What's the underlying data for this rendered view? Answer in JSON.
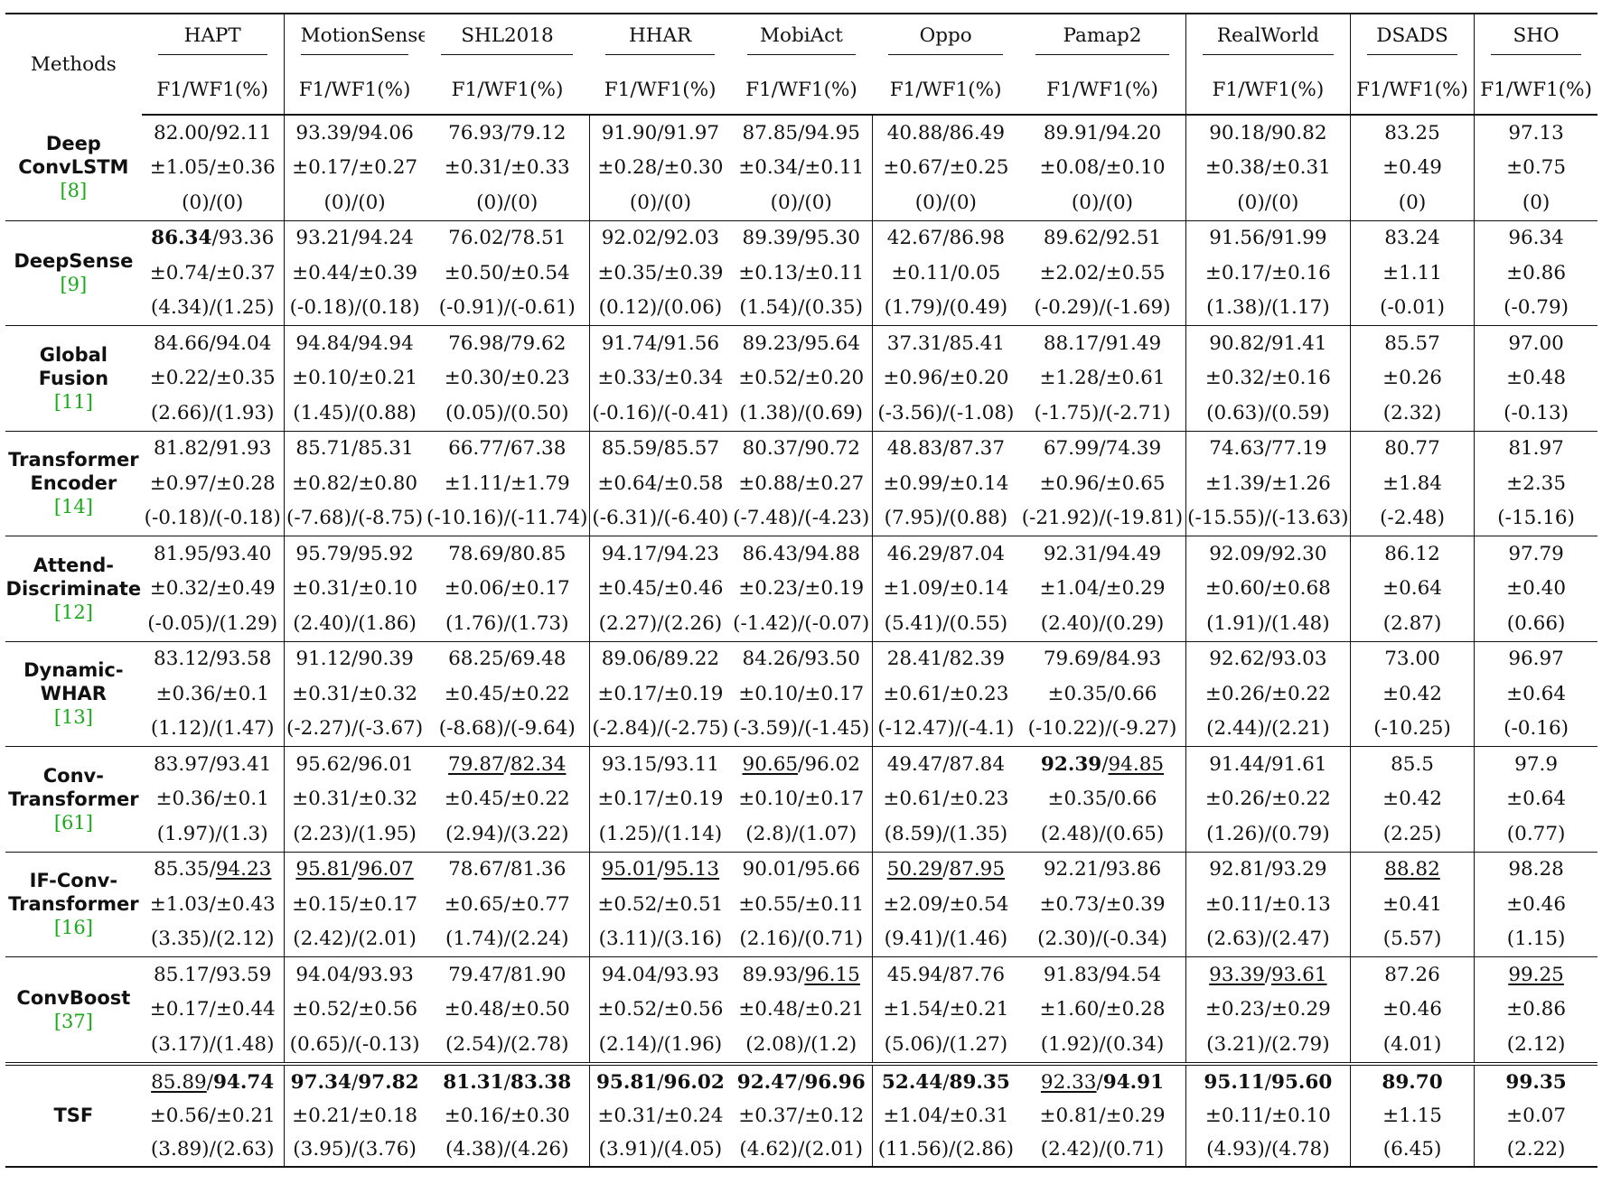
{
  "header": {
    "methods_label": "Methods",
    "metric_label": "F1/WF1(%)",
    "datasets": [
      "HAPT",
      "MotionSense",
      "SHL2018",
      "HHAR",
      "MobiAct",
      "Oppo",
      "Pamap2",
      "RealWorld",
      "DSADS",
      "SHO"
    ]
  },
  "methods": [
    {
      "name_lines": [
        "Deep",
        "ConvLSTM"
      ],
      "cite": "[8]",
      "double_after": false,
      "rows": [
        [
          "82.00/92.11",
          "93.39/94.06",
          "76.93/79.12",
          "91.90/91.97",
          "87.85/94.95",
          "40.88/86.49",
          "89.91/94.20",
          "90.18/90.82",
          "83.25",
          "97.13"
        ],
        [
          "±1.05/±0.36",
          "±0.17/±0.27",
          "±0.31/±0.33",
          "±0.28/±0.30",
          "±0.34/±0.11",
          "±0.67/±0.25",
          "±0.08/±0.10",
          "±0.38/±0.31",
          "±0.49",
          "±0.75"
        ],
        [
          "(0)/(0)",
          "(0)/(0)",
          "(0)/(0)",
          "(0)/(0)",
          "(0)/(0)",
          "(0)/(0)",
          "(0)/(0)",
          "(0)/(0)",
          "(0)",
          "(0)"
        ]
      ]
    },
    {
      "name_lines": [
        "DeepSense"
      ],
      "cite": "[9]",
      "double_after": false,
      "rows": [
        [
          "**86.34**/93.36",
          "93.21/94.24",
          "76.02/78.51",
          "92.02/92.03",
          "89.39/95.30",
          "42.67/86.98",
          "89.62/92.51",
          "91.56/91.99",
          "83.24",
          "96.34"
        ],
        [
          "±0.74/±0.37",
          "±0.44/±0.39",
          "±0.50/±0.54",
          "±0.35/±0.39",
          "±0.13/±0.11",
          "±0.11/0.05",
          "±2.02/±0.55",
          "±0.17/±0.16",
          "±1.11",
          "±0.86"
        ],
        [
          "(4.34)/(1.25)",
          "(-0.18)/(0.18)",
          "(-0.91)/(-0.61)",
          "(0.12)/(0.06)",
          "(1.54)/(0.35)",
          "(1.79)/(0.49)",
          "(-0.29)/(-1.69)",
          "(1.38)/(1.17)",
          "(-0.01)",
          "(-0.79)"
        ]
      ]
    },
    {
      "name_lines": [
        "Global",
        "Fusion"
      ],
      "cite": "[11]",
      "double_after": false,
      "rows": [
        [
          "84.66/94.04",
          "94.84/94.94",
          "76.98/79.62",
          "91.74/91.56",
          "89.23/95.64",
          "37.31/85.41",
          "88.17/91.49",
          "90.82/91.41",
          "85.57",
          "97.00"
        ],
        [
          "±0.22/±0.35",
          "±0.10/±0.21",
          "±0.30/±0.23",
          "±0.33/±0.34",
          "±0.52/±0.20",
          "±0.96/±0.20",
          "±1.28/±0.61",
          "±0.32/±0.16",
          "±0.26",
          "±0.48"
        ],
        [
          "(2.66)/(1.93)",
          "(1.45)/(0.88)",
          "(0.05)/(0.50)",
          "(-0.16)/(-0.41)",
          "(1.38)/(0.69)",
          "(-3.56)/(-1.08)",
          "(-1.75)/(-2.71)",
          "(0.63)/(0.59)",
          "(2.32)",
          "(-0.13)"
        ]
      ]
    },
    {
      "name_lines": [
        "Transformer",
        "Encoder"
      ],
      "cite": "[14]",
      "double_after": false,
      "rows": [
        [
          "81.82/91.93",
          "85.71/85.31",
          "66.77/67.38",
          "85.59/85.57",
          "80.37/90.72",
          "48.83/87.37",
          "67.99/74.39",
          "74.63/77.19",
          "80.77",
          "81.97"
        ],
        [
          "±0.97/±0.28",
          "±0.82/±0.80",
          "±1.11/±1.79",
          "±0.64/±0.58",
          "±0.88/±0.27",
          "±0.99/±0.14",
          "±0.96/±0.65",
          "±1.39/±1.26",
          "±1.84",
          "±2.35"
        ],
        [
          "(-0.18)/(-0.18)",
          "(-7.68)/(-8.75)",
          "(-10.16)/(-11.74)",
          "(-6.31)/(-6.40)",
          "(-7.48)/(-4.23)",
          "(7.95)/(0.88)",
          "(-21.92)/(-19.81)",
          "(-15.55)/(-13.63)",
          "(-2.48)",
          "(-15.16)"
        ]
      ]
    },
    {
      "name_lines": [
        "Attend-",
        "Discriminate"
      ],
      "cite": "[12]",
      "double_after": false,
      "rows": [
        [
          "81.95/93.40",
          "95.79/95.92",
          "78.69/80.85",
          "94.17/94.23",
          "86.43/94.88",
          "46.29/87.04",
          "92.31/94.49",
          "92.09/92.30",
          "86.12",
          "97.79"
        ],
        [
          "±0.32/±0.49",
          "±0.31/±0.10",
          "±0.06/±0.17",
          "±0.45/±0.46",
          "±0.23/±0.19",
          "±1.09/±0.14",
          "±1.04/±0.29",
          "±0.60/±0.68",
          "±0.64",
          "±0.40"
        ],
        [
          "(-0.05)/(1.29)",
          "(2.40)/(1.86)",
          "(1.76)/(1.73)",
          "(2.27)/(2.26)",
          "(-1.42)/(-0.07)",
          "(5.41)/(0.55)",
          "(2.40)/(0.29)",
          "(1.91)/(1.48)",
          "(2.87)",
          "(0.66)"
        ]
      ]
    },
    {
      "name_lines": [
        "Dynamic-",
        "WHAR"
      ],
      "cite": "[13]",
      "double_after": false,
      "rows": [
        [
          "83.12/93.58",
          "91.12/90.39",
          "68.25/69.48",
          "89.06/89.22",
          "84.26/93.50",
          "28.41/82.39",
          "79.69/84.93",
          "92.62/93.03",
          "73.00",
          "96.97"
        ],
        [
          "±0.36/±0.1",
          "±0.31/±0.32",
          "±0.45/±0.22",
          "±0.17/±0.19",
          "±0.10/±0.17",
          "±0.61/±0.23",
          "±0.35/0.66",
          "±0.26/±0.22",
          "±0.42",
          "±0.64"
        ],
        [
          "(1.12)/(1.47)",
          "(-2.27)/(-3.67)",
          "(-8.68)/(-9.64)",
          "(-2.84)/(-2.75)",
          "(-3.59)/(-1.45)",
          "(-12.47)/(-4.1)",
          "(-10.22)/(-9.27)",
          "(2.44)/(2.21)",
          "(-10.25)",
          "(-0.16)"
        ]
      ]
    },
    {
      "name_lines": [
        "Conv-",
        "Transformer"
      ],
      "cite": "[61]",
      "double_after": false,
      "rows": [
        [
          "83.97/93.41",
          "95.62/96.01",
          "__79.87__/__82.34__",
          "93.15/93.11",
          "__90.65__/96.02",
          "49.47/87.84",
          "**92.39**/__94.85__",
          "91.44/91.61",
          "85.5",
          "97.9"
        ],
        [
          "±0.36/±0.1",
          "±0.31/±0.32",
          "±0.45/±0.22",
          "±0.17/±0.19",
          "±0.10/±0.17",
          "±0.61/±0.23",
          "±0.35/0.66",
          "±0.26/±0.22",
          "±0.42",
          "±0.64"
        ],
        [
          "(1.97)/(1.3)",
          "(2.23)/(1.95)",
          "(2.94)/(3.22)",
          "(1.25)/(1.14)",
          "(2.8)/(1.07)",
          "(8.59)/(1.35)",
          "(2.48)/(0.65)",
          "(1.26)/(0.79)",
          "(2.25)",
          "(0.77)"
        ]
      ]
    },
    {
      "name_lines": [
        "IF-Conv-",
        "Transformer"
      ],
      "cite": "[16]",
      "double_after": false,
      "rows": [
        [
          "85.35/__94.23__",
          "__95.81__/__96.07__",
          "78.67/81.36",
          "__95.01__/__95.13__",
          "90.01/95.66",
          "__50.29__/__87.95__",
          "92.21/93.86",
          "92.81/93.29",
          "__88.82__",
          "98.28"
        ],
        [
          "±1.03/±0.43",
          "±0.15/±0.17",
          "±0.65/±0.77",
          "±0.52/±0.51",
          "±0.55/±0.11",
          "±2.09/±0.54",
          "±0.73/±0.39",
          "±0.11/±0.13",
          "±0.41",
          "±0.46"
        ],
        [
          "(3.35)/(2.12)",
          "(2.42)/(2.01)",
          "(1.74)/(2.24)",
          "(3.11)/(3.16)",
          "(2.16)/(0.71)",
          "(9.41)/(1.46)",
          "(2.30)/(-0.34)",
          "(2.63)/(2.47)",
          "(5.57)",
          "(1.15)"
        ]
      ]
    },
    {
      "name_lines": [
        "ConvBoost"
      ],
      "cite": "[37]",
      "double_after": true,
      "rows": [
        [
          "85.17/93.59",
          "94.04/93.93",
          "79.47/81.90",
          "94.04/93.93",
          "89.93/__96.15__",
          "45.94/87.76",
          "91.83/94.54",
          "__93.39__/__93.61__",
          "87.26",
          "__99.25__"
        ],
        [
          "±0.17/±0.44",
          "±0.52/±0.56",
          "±0.48/±0.50",
          "±0.52/±0.56",
          "±0.48/±0.21",
          "±1.54/±0.21",
          "±1.60/±0.28",
          "±0.23/±0.29",
          "±0.46",
          "±0.86"
        ],
        [
          "(3.17)/(1.48)",
          "(0.65)/(-0.13)",
          "(2.54)/(2.78)",
          "(2.14)/(1.96)",
          "(2.08)/(1.2)",
          "(5.06)/(1.27)",
          "(1.92)/(0.34)",
          "(3.21)/(2.79)",
          "(4.01)",
          "(2.12)"
        ]
      ]
    },
    {
      "name_lines": [
        "TSF"
      ],
      "cite": "",
      "double_after": false,
      "rows": [
        [
          "__85.89__/**94.74**",
          "**97.34**/**97.82**",
          "**81.31**/**83.38**",
          "**95.81**/**96.02**",
          "**92.47**/**96.96**",
          "**52.44**/**89.35**",
          "__92.33__/**94.91**",
          "**95.11**/**95.60**",
          "**89.70**",
          "**99.35**"
        ],
        [
          "±0.56/±0.21",
          "±0.21/±0.18",
          "±0.16/±0.30",
          "±0.31/±0.24",
          "±0.37/±0.12",
          "±1.04/±0.31",
          "±0.81/±0.29",
          "±0.11/±0.10",
          "±1.15",
          "±0.07"
        ],
        [
          "(3.89)/(2.63)",
          "(3.95)/(3.76)",
          "(4.38)/(4.26)",
          "(3.91)/(4.05)",
          "(4.62)/(2.01)",
          "(11.56)/(2.86)",
          "(2.42)/(0.71)",
          "(4.93)/(4.78)",
          "(6.45)",
          "(2.22)"
        ]
      ]
    }
  ]
}
